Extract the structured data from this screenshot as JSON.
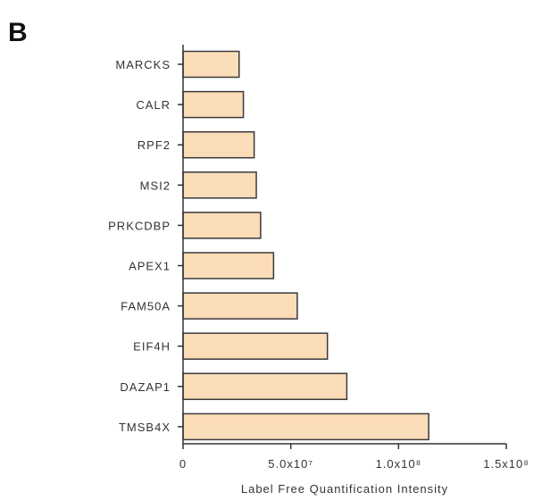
{
  "panel_label": "B",
  "chart_data": {
    "type": "bar",
    "orientation": "horizontal",
    "categories": [
      "MARCKS",
      "CALR",
      "RPF2",
      "MSI2",
      "PRKCDBP",
      "APEX1",
      "FAM50A",
      "EIF4H",
      "DAZAP1",
      "TMSB4X"
    ],
    "values": [
      26000000,
      28000000,
      33000000,
      34000000,
      36000000,
      42000000,
      53000000,
      67000000,
      76000000,
      114000000
    ],
    "title": "",
    "xlabel": "Label Free Quantification Intensity",
    "ylabel": "",
    "xlim": [
      0,
      150000000
    ],
    "x_ticks": [
      {
        "value": 0,
        "label": "0"
      },
      {
        "value": 50000000,
        "label": "5.0x10⁷"
      },
      {
        "value": 100000000,
        "label": "1.0x10⁸"
      },
      {
        "value": 150000000,
        "label": "1.5x10⁸"
      }
    ],
    "grid": false,
    "legend": "none",
    "bar_color": "#fbdcb8",
    "bar_edge_color": "#3a3a3a"
  }
}
